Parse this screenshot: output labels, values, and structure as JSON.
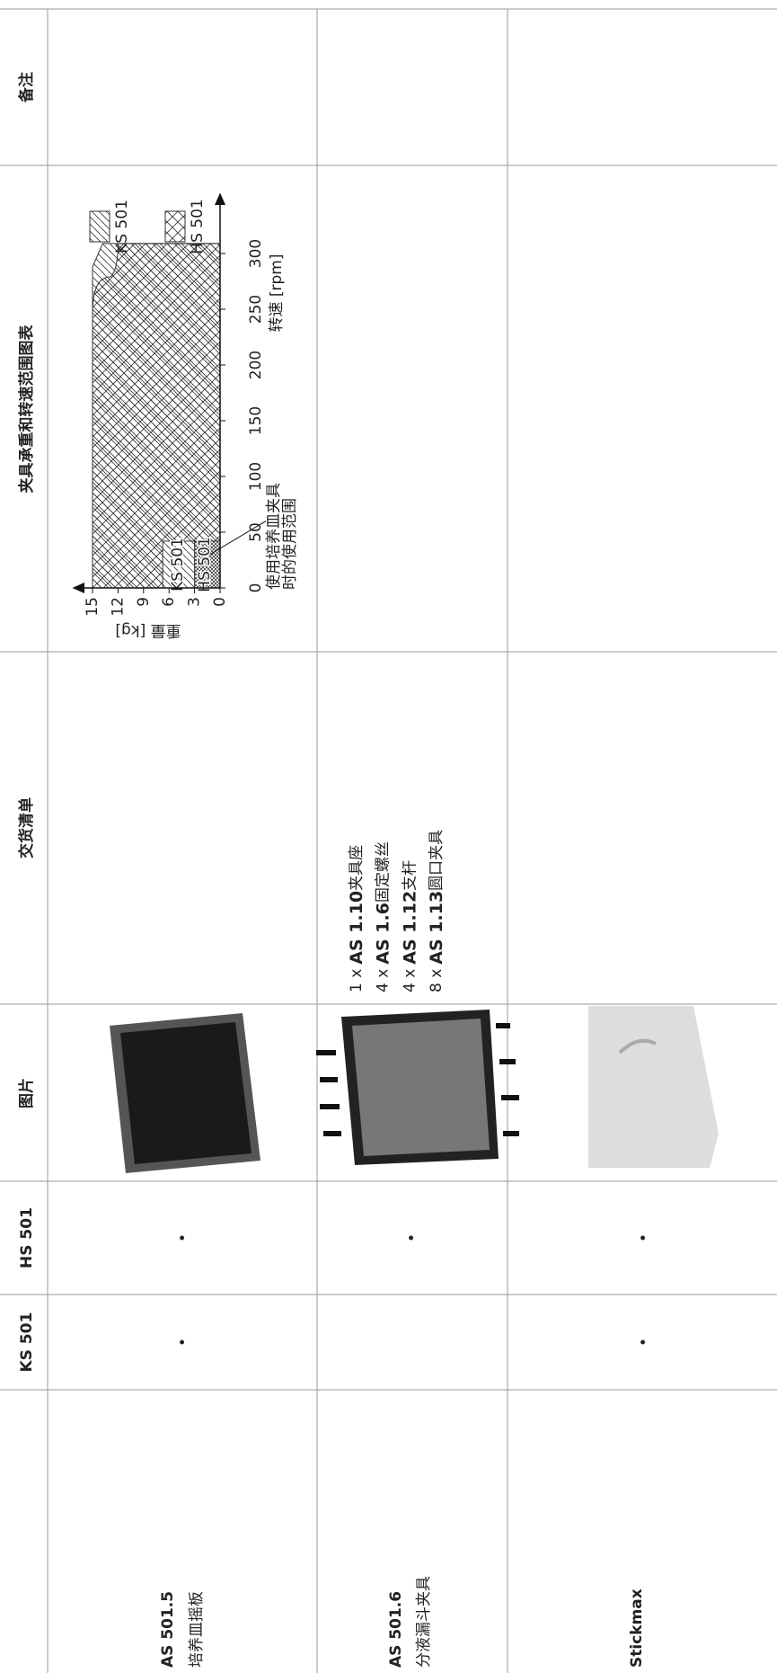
{
  "table": {
    "headers": {
      "ks": "KS 501",
      "hs": "HS 501",
      "image": "图片",
      "delivery": "交货清单",
      "chart": "夹具承重和转速范围图表",
      "remarks": "备注"
    },
    "rows": [
      {
        "name": "AS 501.5",
        "subtitle": "培养皿摇板",
        "ks": "•",
        "hs": "•",
        "chart": {
          "y_label": "重量 [kg]",
          "x_label": "转速 [rpm]",
          "xticks": [
            0,
            50,
            100,
            150,
            200,
            250,
            300
          ],
          "yticks": [
            0,
            3,
            6,
            9,
            12,
            15
          ],
          "legend": [
            "KS 501",
            "HS 501"
          ],
          "region_labels": [
            "HS 501",
            "KS 501"
          ],
          "annotation": [
            "使用培养皿夹具",
            "时的使用范围"
          ]
        }
      },
      {
        "name": "AS 501.6",
        "subtitle": "分液漏斗夹具",
        "hs": "•",
        "delivery": [
          {
            "qty": "1 x",
            "code": "AS 1.10",
            "item": "夹具座"
          },
          {
            "qty": "4 x",
            "code": "AS 1.6",
            "item": "固定螺丝"
          },
          {
            "qty": "4 x",
            "code": "AS 1.12",
            "item": "支杆"
          },
          {
            "qty": "8 x",
            "code": "AS 1.13",
            "item": "圆口夹具"
          }
        ]
      },
      {
        "name": "Stickmax",
        "ks": "•",
        "hs": "•"
      }
    ]
  }
}
